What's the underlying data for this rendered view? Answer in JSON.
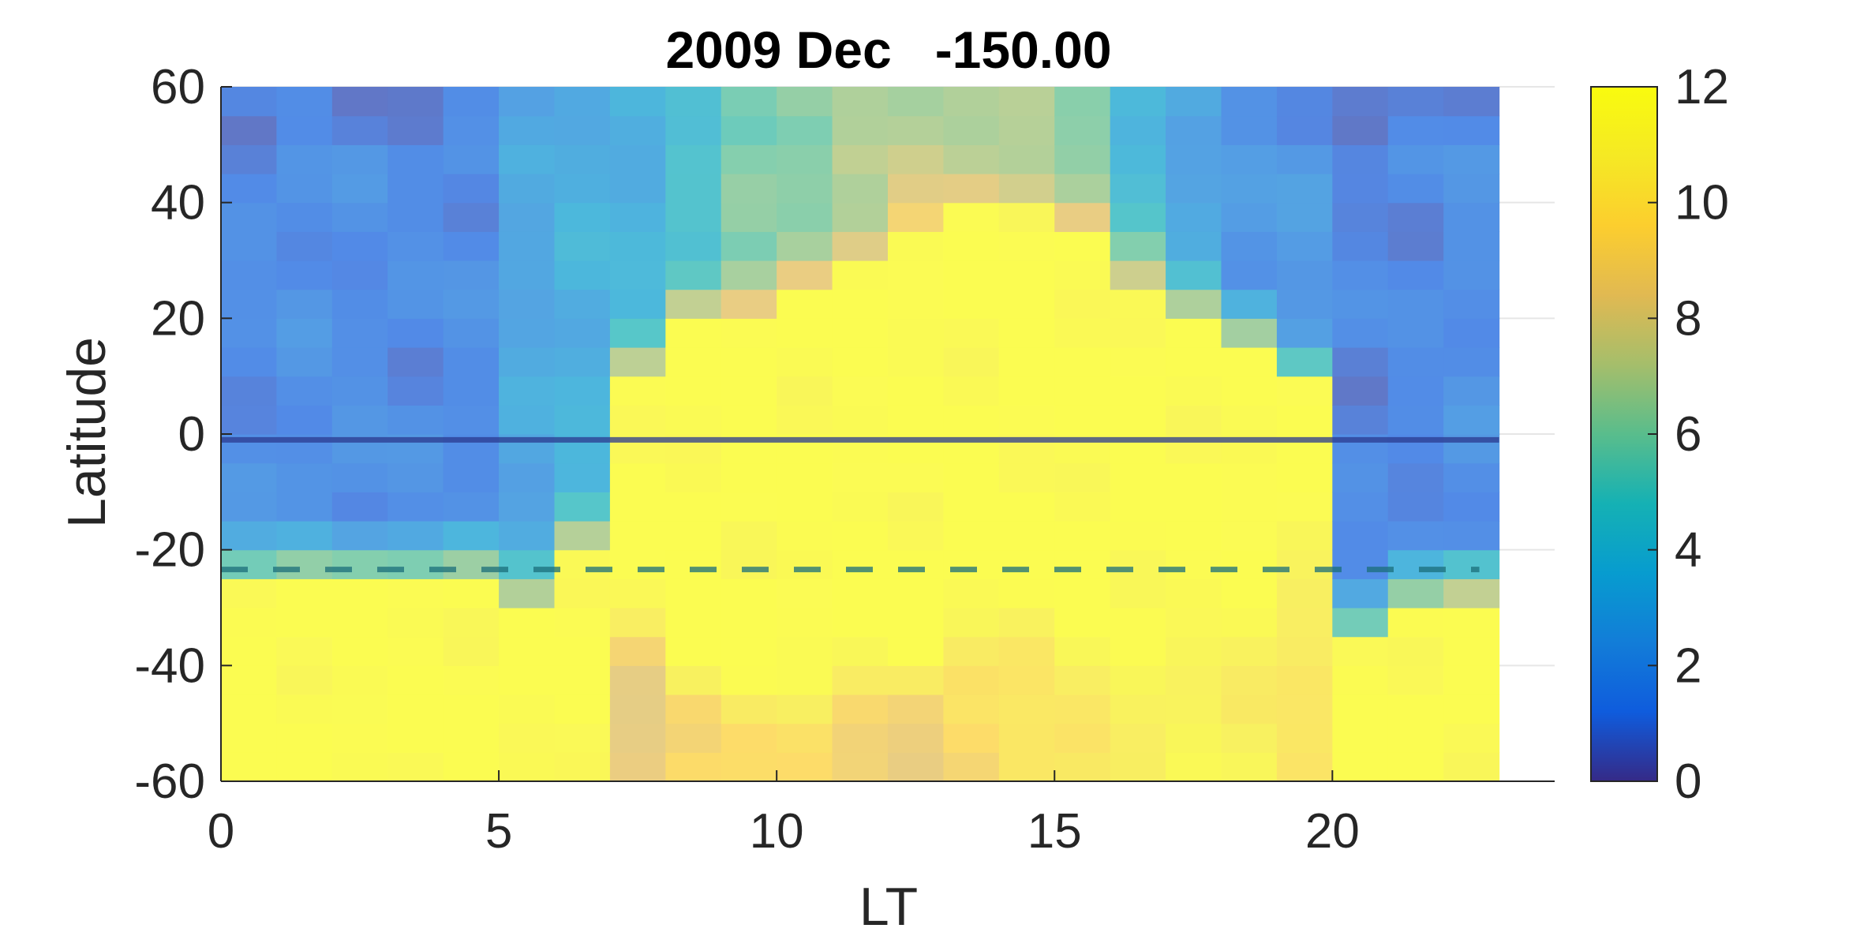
{
  "chart_data": {
    "type": "heatmap",
    "title": "2009 Dec   -150.00",
    "xlabel": "LT",
    "ylabel": "Latitude",
    "xlim": [
      0,
      24
    ],
    "ylim": [
      -60,
      60
    ],
    "xticks": [
      0,
      5,
      10,
      15,
      20
    ],
    "yticks": [
      60,
      40,
      20,
      0,
      -20,
      -40,
      -60
    ],
    "x_cells": [
      0,
      1,
      2,
      3,
      4,
      5,
      6,
      7,
      8,
      9,
      10,
      11,
      12,
      13,
      14,
      15,
      16,
      17,
      18,
      19,
      20,
      21,
      22
    ],
    "cell_width": 1,
    "cell_height": 5,
    "colorbar": {
      "limits": [
        0,
        12
      ],
      "ticks": [
        0,
        2,
        4,
        6,
        8,
        10,
        12
      ],
      "colormap": "parula"
    },
    "reference_lines": [
      {
        "style": "solid",
        "latitude": -1,
        "color": "#2b3a8f"
      },
      {
        "style": "dashed",
        "latitude": -23.4,
        "color": "#1b6e7a"
      }
    ],
    "grid": true,
    "profiles": {
      "lt": [
        0,
        1,
        2,
        3,
        4,
        5,
        6,
        7,
        8,
        9,
        10,
        11,
        12,
        13,
        14,
        15,
        16,
        17,
        18,
        19,
        20,
        21,
        22
      ],
      "north_edge": [
        -25,
        -25,
        -25,
        -25,
        -25,
        -30,
        -20,
        10,
        20,
        22,
        25,
        30,
        35,
        38,
        38,
        35,
        25,
        20,
        15,
        8,
        -35,
        -30,
        -28
      ],
      "south_edge": [
        -100,
        -100,
        -100,
        -100,
        -100,
        -100,
        -100,
        -30,
        -40,
        -42,
        -42,
        -40,
        -38,
        -32,
        -30,
        -32,
        -32,
        -30,
        -25,
        -20,
        -100,
        -100,
        -100
      ],
      "north_night": [
        1.6,
        1.8,
        1.7,
        1.6,
        1.7,
        3.0,
        3.5,
        3.6,
        4.5,
        5.2,
        5.6,
        6.3,
        6.8,
        6.8,
        6.4,
        5.6,
        4.3,
        3.0,
        2.2,
        2.2,
        1.4,
        1.5,
        1.8
      ],
      "south_floor": [
        6.5,
        5.2,
        4.6,
        4.8,
        5.0,
        5.2,
        7.0,
        8.2,
        9.2,
        9.8,
        9.4,
        8.6,
        8.8,
        9.5,
        10.2,
        10.6,
        11.0,
        11.2,
        11.0,
        10.3,
        9.7,
        9.0,
        8.0
      ]
    }
  }
}
